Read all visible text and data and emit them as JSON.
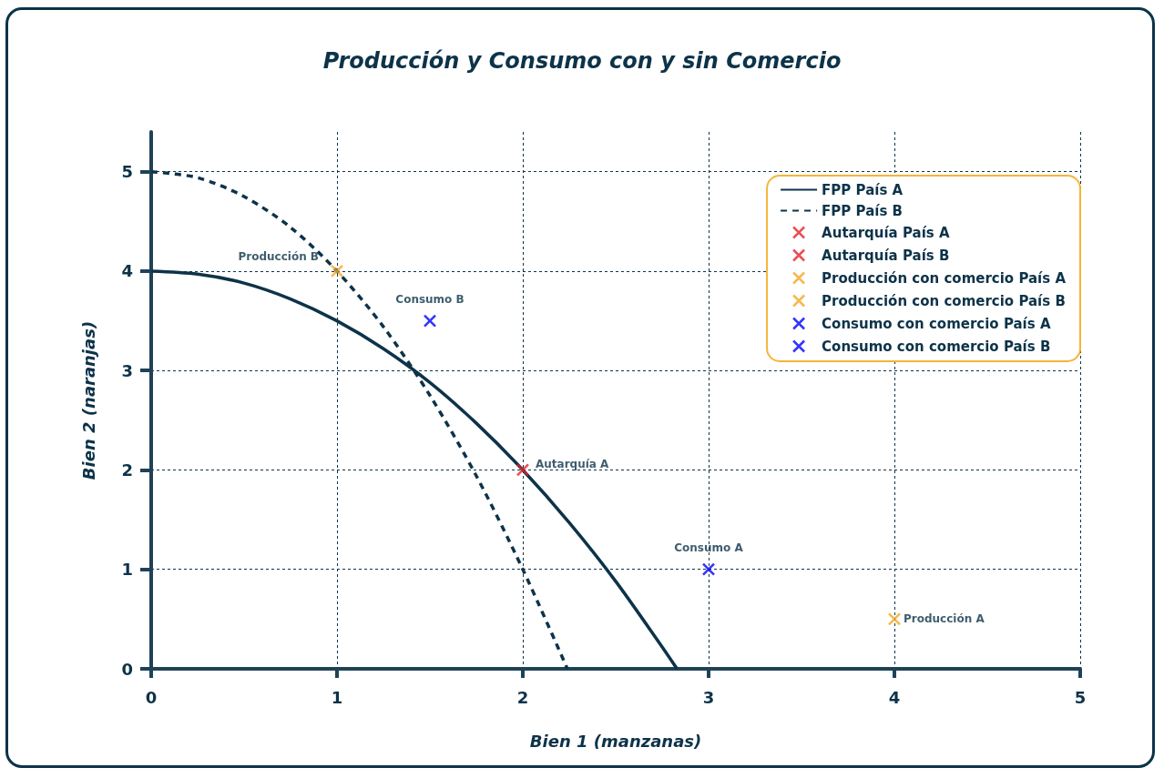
{
  "chart_data": {
    "type": "scatter",
    "title": "Producción y Consumo con y sin Comercio",
    "xlabel": "Bien 1 (manzanas)",
    "ylabel": "Bien 2 (naranjas)",
    "xlim": [
      0,
      5
    ],
    "ylim": [
      0,
      5.4
    ],
    "xticks": [
      0,
      1,
      2,
      3,
      4,
      5
    ],
    "yticks": [
      0,
      1,
      2,
      3,
      4,
      5
    ],
    "grid": true,
    "legend": "top right",
    "marker": "cross",
    "series": [
      {
        "name": "FPP País A",
        "type": "line",
        "marker": "none",
        "line_style": "solid",
        "color": "#0d3349",
        "x": [
          0,
          0.25,
          0.5,
          0.75,
          1,
          1.25,
          1.5,
          1.75,
          2,
          2.25,
          2.5,
          2.75,
          2.83
        ],
        "values": [
          4,
          3.97,
          3.88,
          3.72,
          3.5,
          3.22,
          2.88,
          2.47,
          2,
          1.47,
          0.88,
          0.22,
          0
        ]
      },
      {
        "name": "FPP País B",
        "type": "line",
        "marker": "none",
        "line_style": "dashed",
        "color": "#0d3349",
        "x": [
          0,
          0.25,
          0.5,
          0.75,
          1,
          1.25,
          1.5,
          1.75,
          2,
          2.24
        ],
        "values": [
          5,
          4.94,
          4.75,
          4.44,
          4,
          3.44,
          2.75,
          1.94,
          1,
          0
        ]
      },
      {
        "name": "Autarquía País A",
        "color": "#e8202a",
        "x": [
          2
        ],
        "values": [
          2
        ]
      },
      {
        "name": "Autarquía País B",
        "color": "#e8202a"
      },
      {
        "name": "Producción con comercio País A",
        "color": "#f5a623",
        "x": [
          4
        ],
        "values": [
          0.5
        ]
      },
      {
        "name": "Producción con comercio País B",
        "color": "#f5a623",
        "x": [
          1
        ],
        "values": [
          4
        ]
      },
      {
        "name": "Consumo con comercio País A",
        "color": "#0000ff",
        "x": [
          3
        ],
        "values": [
          1
        ]
      },
      {
        "name": "Consumo con comercio País B",
        "color": "#0000ff",
        "x": [
          1.5
        ],
        "values": [
          3.5
        ]
      }
    ],
    "annotations": [
      {
        "text": "Producción B",
        "x": 1,
        "y": 4
      },
      {
        "text": "Consumo B",
        "x": 1.5,
        "y": 3.5
      },
      {
        "text": "Autarquía A",
        "x": 2,
        "y": 2
      },
      {
        "text": "Consumo A",
        "x": 3,
        "y": 1
      },
      {
        "text": "Producción A",
        "x": 4,
        "y": 0.5
      }
    ]
  }
}
